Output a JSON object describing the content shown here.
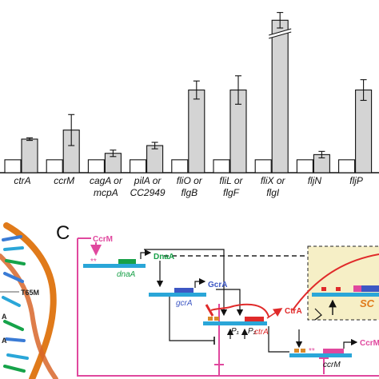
{
  "chart_data": {
    "type": "bar",
    "categories": [
      [
        "ctrA"
      ],
      [
        "ccrM"
      ],
      [
        "cagA or",
        "mcpA"
      ],
      [
        "pilA or",
        "CC2949"
      ],
      [
        "fliO or",
        "flgB"
      ],
      [
        "fliL or",
        "flgF"
      ],
      [
        "fliX or",
        "flgI"
      ],
      [
        "fljN"
      ],
      [
        "fljP"
      ]
    ],
    "series": [
      {
        "color": "#ffffff",
        "values": [
          1.0,
          1.0,
          1.0,
          1.0,
          1.0,
          1.0,
          1.0,
          1.0,
          1.0
        ]
      },
      {
        "color": "#d4d4d4",
        "values": [
          2.6,
          3.3,
          1.5,
          2.1,
          6.4,
          6.4,
          11.8,
          1.4,
          6.4
        ]
      }
    ],
    "errors": [
      0.1,
      1.2,
      0.25,
      0.25,
      0.7,
      1.1,
      0.6,
      0.25,
      0.8
    ],
    "axis_break": true,
    "ylim": [
      0,
      12.5
    ],
    "legend": "none"
  },
  "panel_c": {
    "label": "C",
    "proteins": {
      "ccrm": "CcrM",
      "dnaa": "DnaA",
      "gcra": "GcrA",
      "ctra": "CtrA",
      "ccrm2": "CcrM"
    },
    "genes": {
      "dnaa": "dnaA",
      "gcra": "gcrA",
      "ctra": "ctrA",
      "ccrm": "ccrM"
    },
    "promoters": {
      "p1": "P₁",
      "p2": "P₂"
    },
    "boxed_label": "SC",
    "stars": "**",
    "colors": {
      "dna": "#2aa6d8",
      "ccrm": "#e0489e",
      "dnaa": "#18a048",
      "gcra": "#3d57c4",
      "ctra": "#e02a2a",
      "box": "#f6efc6",
      "helix": "#e07a1a"
    }
  },
  "panel_b": {
    "mutations": [
      "T65M",
      "A",
      "A"
    ]
  }
}
